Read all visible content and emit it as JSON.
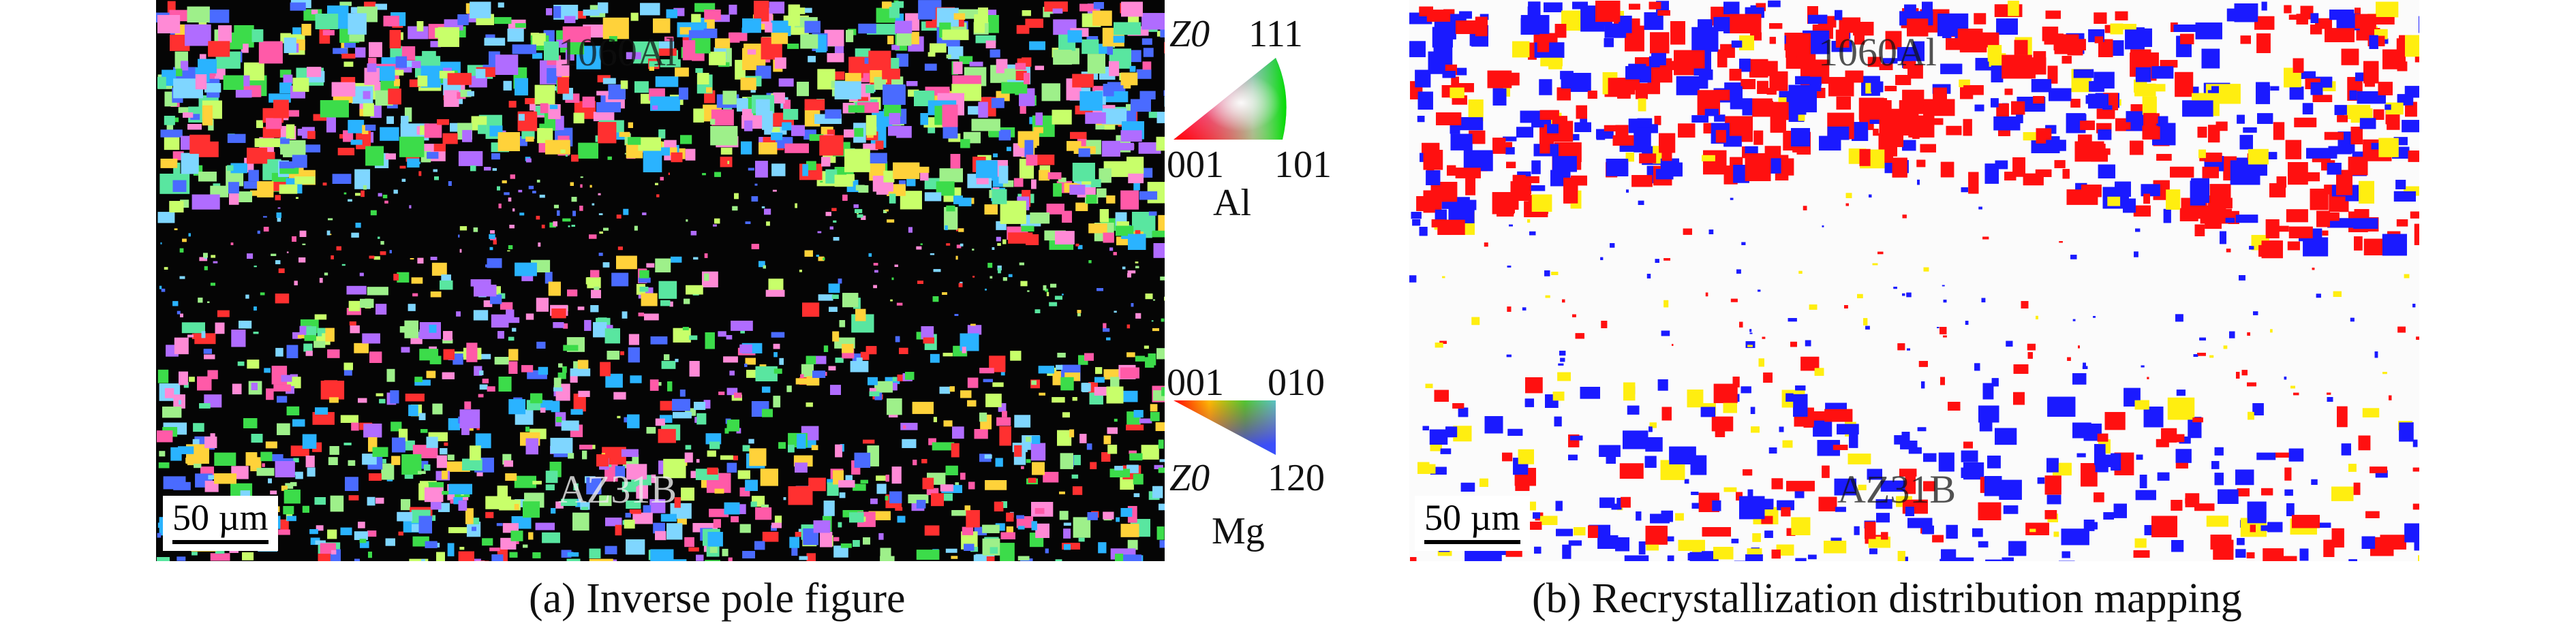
{
  "panel_a": {
    "top_material": "1060Al",
    "bottom_material": "AZ31B",
    "scale_bar": "50 µm",
    "caption": "(a) Inverse pole figure"
  },
  "legend_al": {
    "top_left": "Z0",
    "top_right": "111",
    "bottom_left": "001",
    "bottom_right": "101",
    "material": "Al"
  },
  "legend_mg": {
    "top_left": "001",
    "top_right": "010",
    "bottom_left": "Z0",
    "bottom_right": "120",
    "material": "Mg"
  },
  "panel_b": {
    "top_material": "1060Al",
    "bottom_material": "AZ31B",
    "scale_bar": "50 µm",
    "caption": "(b) Recrystallization distribution mapping"
  }
}
